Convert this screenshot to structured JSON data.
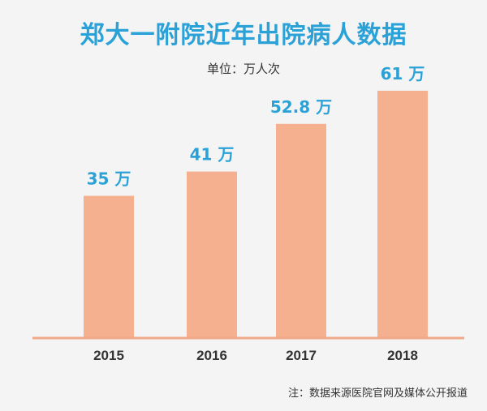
{
  "colors": {
    "title": "#2aa2d8",
    "bar": "#f4b08f",
    "baseline": "#f0a888",
    "data_label": "#2aa2d8",
    "tick_label": "#333333",
    "background": "#f4f4f4"
  },
  "chart_data": {
    "type": "bar",
    "title": "郑大一附院近年出院病人数据",
    "subtitle": "单位：万人次",
    "categories": [
      "2015",
      "2016",
      "2017",
      "2018"
    ],
    "values": [
      35,
      41,
      52.8,
      61
    ],
    "data_labels": [
      "35 万",
      "41 万",
      "52.8 万",
      "61 万"
    ],
    "ylim": [
      0,
      65
    ],
    "grid": false,
    "legend": "none",
    "source_note": "注：数据来源医院官网及媒体公开报道"
  }
}
